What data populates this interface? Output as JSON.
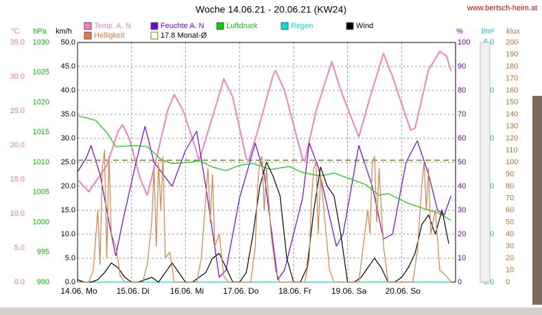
{
  "chart_data": {
    "type": "line",
    "title": "Woche 14.06.21 - 20.06.21 (KW24)",
    "source": "www.bertsch-heim.at",
    "xlim": [
      0,
      168
    ],
    "xticks": [
      {
        "value": 0,
        "label": "14.06.  Mo"
      },
      {
        "value": 24,
        "label": "15.06.  Di"
      },
      {
        "value": 48,
        "label": "16.06.  Mi"
      },
      {
        "value": 72,
        "label": "17.06.  Do"
      },
      {
        "value": 96,
        "label": "18.06.  Fr"
      },
      {
        "value": 120,
        "label": "19.06.  Sa"
      },
      {
        "value": 144,
        "label": "20.06.  So"
      }
    ],
    "grid": true,
    "axes": {
      "temp": {
        "label": "°C",
        "color": "#f070c0",
        "lim": [
          0,
          35
        ],
        "ticks": [
          {
            "value": 0,
            "label": "0.0"
          },
          {
            "value": 5,
            "label": "5.0"
          },
          {
            "value": 10,
            "label": "10.0"
          },
          {
            "value": 15,
            "label": "15.0"
          },
          {
            "value": 20,
            "label": "20.0"
          },
          {
            "value": 25,
            "label": "25.0"
          },
          {
            "value": 30,
            "label": "30.0"
          },
          {
            "value": 35,
            "label": "35.0"
          }
        ]
      },
      "hpa": {
        "label": "hPa",
        "color": "#00c000",
        "lim": [
          990,
          1030
        ],
        "ticks": [
          990,
          995,
          1000,
          1005,
          1010,
          1015,
          1020,
          1025,
          1030
        ]
      },
      "kmh": {
        "label": "km/h",
        "color": "#000000",
        "lim": [
          0,
          50
        ],
        "ticks": [
          {
            "value": 0,
            "label": "0.0"
          },
          {
            "value": 5,
            "label": "5.0"
          },
          {
            "value": 10,
            "label": "10.0"
          },
          {
            "value": 15,
            "label": "15.0"
          },
          {
            "value": 20,
            "label": "20.0"
          },
          {
            "value": 25,
            "label": "25.0"
          },
          {
            "value": 30,
            "label": "30.0"
          },
          {
            "value": 35,
            "label": "35.0"
          },
          {
            "value": 40,
            "label": "40.0"
          },
          {
            "value": 45,
            "label": "45.0"
          },
          {
            "value": 50,
            "label": "50.0"
          }
        ]
      },
      "pct": {
        "label": "%",
        "color": "#7000c0",
        "lim": [
          0,
          100
        ],
        "ticks": [
          0,
          10,
          20,
          30,
          40,
          50,
          60,
          70,
          80,
          90,
          100
        ]
      },
      "rain": {
        "label": "l/m²",
        "color": "#00c0c0",
        "lim": [
          0,
          5
        ],
        "ticks": [
          {
            "value": 0,
            "label": "0.0"
          },
          {
            "value": 1,
            "label": "1.0"
          },
          {
            "value": 2,
            "label": "2.0"
          },
          {
            "value": 3,
            "label": "3.0"
          },
          {
            "value": 4,
            "label": "4.0"
          },
          {
            "value": 5,
            "label": "5.0"
          }
        ]
      },
      "lux": {
        "label": "klux",
        "color": "#c07030",
        "lim": [
          0,
          200
        ],
        "ticks": [
          0,
          10,
          20,
          30,
          40,
          50,
          60,
          70,
          80,
          90,
          100,
          110,
          120,
          130,
          140,
          150,
          160,
          170,
          180,
          190,
          200
        ]
      }
    },
    "series": [
      {
        "name": "Temp. A. N",
        "color": "#f080c0",
        "axis": "temp",
        "x": [
          0,
          5,
          13,
          18,
          20,
          23,
          28,
          31,
          35,
          40,
          43,
          47,
          53,
          54,
          58,
          64,
          65,
          69,
          75,
          76,
          80,
          87,
          88,
          92,
          100,
          101,
          106,
          113,
          117,
          125,
          130,
          136,
          140,
          148,
          150,
          156,
          161,
          164,
          166
        ],
        "values": [
          15,
          13.2,
          17,
          22,
          23,
          21,
          15,
          12.7,
          18,
          25,
          27.4,
          25,
          19,
          17.7,
          22,
          28.5,
          29.7,
          27,
          18,
          17.7,
          22,
          30.3,
          30.9,
          28,
          18,
          17.7,
          25,
          32.2,
          28,
          21.2,
          27,
          33.4,
          30,
          22.2,
          22.5,
          31,
          33.7,
          33,
          30.8
        ]
      },
      {
        "name": "Feuchte A. N",
        "color": "#7000e0",
        "axis": "pct",
        "x": [
          0,
          4,
          6,
          10,
          15,
          17,
          20,
          26,
          30,
          34,
          42,
          48,
          53,
          57,
          63,
          66,
          72,
          79,
          83,
          89,
          92,
          100,
          103,
          107,
          115,
          118,
          125,
          131,
          136,
          140,
          146,
          151,
          156,
          160,
          163,
          166
        ],
        "values": [
          46,
          52,
          57,
          45,
          20,
          11,
          25,
          50,
          65,
          50,
          40,
          55,
          63,
          40,
          2,
          5,
          35,
          58,
          45,
          1,
          5,
          35,
          58,
          48,
          15,
          20,
          57,
          40,
          18,
          20,
          50,
          59,
          45,
          30,
          28,
          36
        ]
      },
      {
        "name": "Luftdruck",
        "color": "#00d000",
        "axis": "hpa",
        "x": [
          0,
          8,
          13,
          17,
          25,
          31,
          37,
          42,
          50,
          54,
          60,
          66,
          72,
          78,
          86,
          94,
          100,
          108,
          114,
          120,
          128,
          134,
          138,
          146,
          152,
          160,
          166
        ],
        "values": [
          1017.8,
          1017,
          1015,
          1012.6,
          1012.8,
          1012.6,
          1010.5,
          1009.8,
          1010,
          1010.3,
          1009.2,
          1008.6,
          1009.5,
          1009.8,
          1008.8,
          1009.3,
          1008.3,
          1007.7,
          1008.2,
          1007.4,
          1006.3,
          1004.5,
          1004.8,
          1003.3,
          1002.5,
          1001.6,
          1000.3
        ]
      },
      {
        "name": "Regen",
        "color": "#00e0e0",
        "axis": "rain",
        "x": [
          0,
          166
        ],
        "values": [
          0,
          0
        ]
      },
      {
        "name": "Wind",
        "color": "#000000",
        "axis": "kmh",
        "x": [
          0,
          3,
          6,
          9,
          12,
          15,
          18,
          21,
          24,
          27,
          30,
          33,
          36,
          39,
          42,
          45,
          48,
          51,
          54,
          57,
          60,
          63,
          66,
          69,
          72,
          75,
          78,
          81,
          84,
          87,
          90,
          93,
          96,
          99,
          102,
          105,
          108,
          111,
          114,
          117,
          120,
          123,
          126,
          129,
          132,
          135,
          138,
          141,
          144,
          147,
          150,
          153,
          156,
          159,
          162,
          165
        ],
        "values": [
          0.5,
          0,
          0,
          0.5,
          2,
          4,
          3,
          1,
          0,
          0,
          0.5,
          1,
          0,
          2,
          4,
          2,
          0,
          0,
          1,
          2,
          5,
          6,
          3,
          0,
          0,
          2,
          10,
          20,
          25,
          22,
          18,
          5,
          0,
          0,
          3,
          15,
          24,
          20,
          18,
          10,
          0,
          0,
          1,
          3,
          5,
          3,
          0,
          0,
          1,
          3,
          6,
          12,
          14,
          10,
          15,
          8
        ]
      },
      {
        "name": "Helligkeit",
        "color": "#d88040",
        "legend_color": "#f07838",
        "axis": "lux",
        "x": [
          0,
          5,
          7,
          9,
          10,
          11,
          12,
          13,
          14,
          15,
          17,
          19,
          21,
          29,
          31,
          33,
          34,
          35,
          36,
          37,
          38,
          39,
          41,
          43,
          53,
          55,
          57,
          58,
          59,
          60,
          61,
          63,
          65,
          67,
          77,
          79,
          80,
          81,
          82,
          83,
          84,
          86,
          88,
          90,
          101,
          103,
          104,
          105,
          106,
          107,
          108,
          110,
          112,
          114,
          125,
          127,
          129,
          130,
          131,
          132,
          133,
          134,
          136,
          138,
          149,
          151,
          153,
          154,
          155,
          156,
          157,
          159,
          161,
          164,
          166
        ],
        "values": [
          0,
          0,
          10,
          60,
          15,
          95,
          110,
          20,
          105,
          40,
          30,
          5,
          0,
          0,
          15,
          50,
          95,
          30,
          100,
          60,
          105,
          20,
          25,
          0,
          0,
          20,
          70,
          95,
          50,
          90,
          30,
          40,
          5,
          0,
          0,
          30,
          80,
          100,
          105,
          60,
          95,
          40,
          10,
          0,
          0,
          20,
          70,
          95,
          100,
          40,
          90,
          50,
          10,
          0,
          0,
          30,
          60,
          40,
          100,
          105,
          50,
          95,
          30,
          0,
          0,
          25,
          80,
          100,
          60,
          95,
          40,
          60,
          10,
          5,
          0
        ]
      }
    ],
    "average": {
      "name": "17.8 Monat-Ø",
      "value": 17.8,
      "axis": "temp",
      "color": "#808000"
    }
  }
}
